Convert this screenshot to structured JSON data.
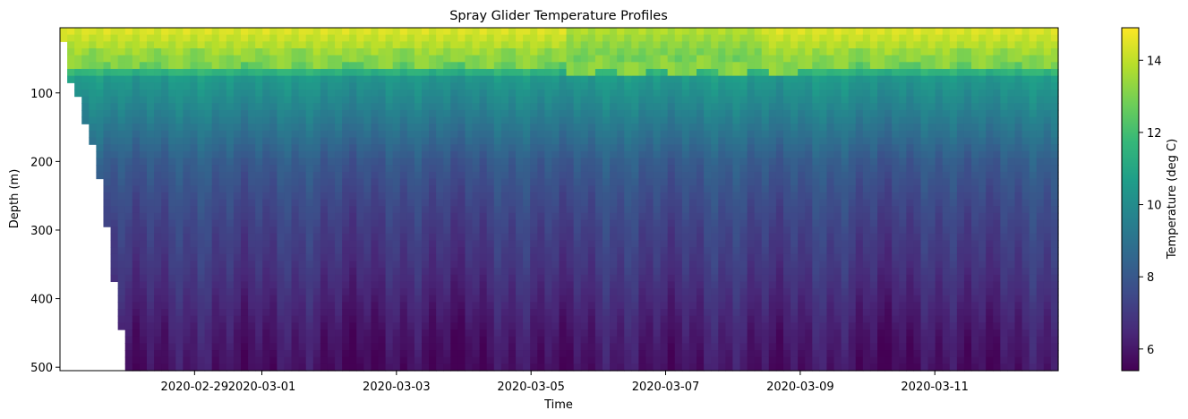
{
  "chart_data": {
    "type": "heatmap",
    "title": "Spray Glider Temperature Profiles",
    "xlabel": "Time",
    "ylabel": "Depth (m)",
    "x_range": [
      "2020-02-27T00:00",
      "2020-03-12T20:00"
    ],
    "ylim": [
      505,
      5
    ],
    "y_inverted": true,
    "x_ticks": [
      "2020-02-29",
      "2020-03-01",
      "2020-03-03",
      "2020-03-05",
      "2020-03-07",
      "2020-03-09",
      "2020-03-11"
    ],
    "y_ticks": [
      100,
      200,
      300,
      400,
      500
    ],
    "colorbar": {
      "label": "Temperature (deg C)",
      "colormap": "viridis",
      "range": [
        5.4,
        14.9
      ],
      "ticks": [
        6,
        8,
        10,
        12,
        14
      ]
    },
    "profile_max_depth": [
      {
        "t": "2020-02-27T00:00",
        "depth": 20
      },
      {
        "t": "2020-02-27T02:30",
        "depth": 80
      },
      {
        "t": "2020-02-27T05:00",
        "depth": 108
      },
      {
        "t": "2020-02-27T07:30",
        "depth": 140
      },
      {
        "t": "2020-02-27T10:00",
        "depth": 175
      },
      {
        "t": "2020-02-27T12:30",
        "depth": 225
      },
      {
        "t": "2020-02-27T15:00",
        "depth": 295
      },
      {
        "t": "2020-02-27T18:00",
        "depth": 375
      },
      {
        "t": "2020-02-27T20:30",
        "depth": 445
      },
      {
        "t": "2020-02-27T23:00",
        "depth": 505
      }
    ],
    "temperature_profile": [
      {
        "depth": 5,
        "temp": 14.5
      },
      {
        "depth": 40,
        "temp": 13.4
      },
      {
        "depth": 60,
        "temp": 12.6
      },
      {
        "depth": 80,
        "temp": 10.5
      },
      {
        "depth": 120,
        "temp": 9.8
      },
      {
        "depth": 150,
        "temp": 9.2
      },
      {
        "depth": 200,
        "temp": 8.2
      },
      {
        "depth": 250,
        "temp": 7.7
      },
      {
        "depth": 300,
        "temp": 7.3
      },
      {
        "depth": 350,
        "temp": 7.0
      },
      {
        "depth": 400,
        "temp": 6.6
      },
      {
        "depth": 450,
        "temp": 6.2
      },
      {
        "depth": 505,
        "temp": 5.9
      }
    ]
  }
}
